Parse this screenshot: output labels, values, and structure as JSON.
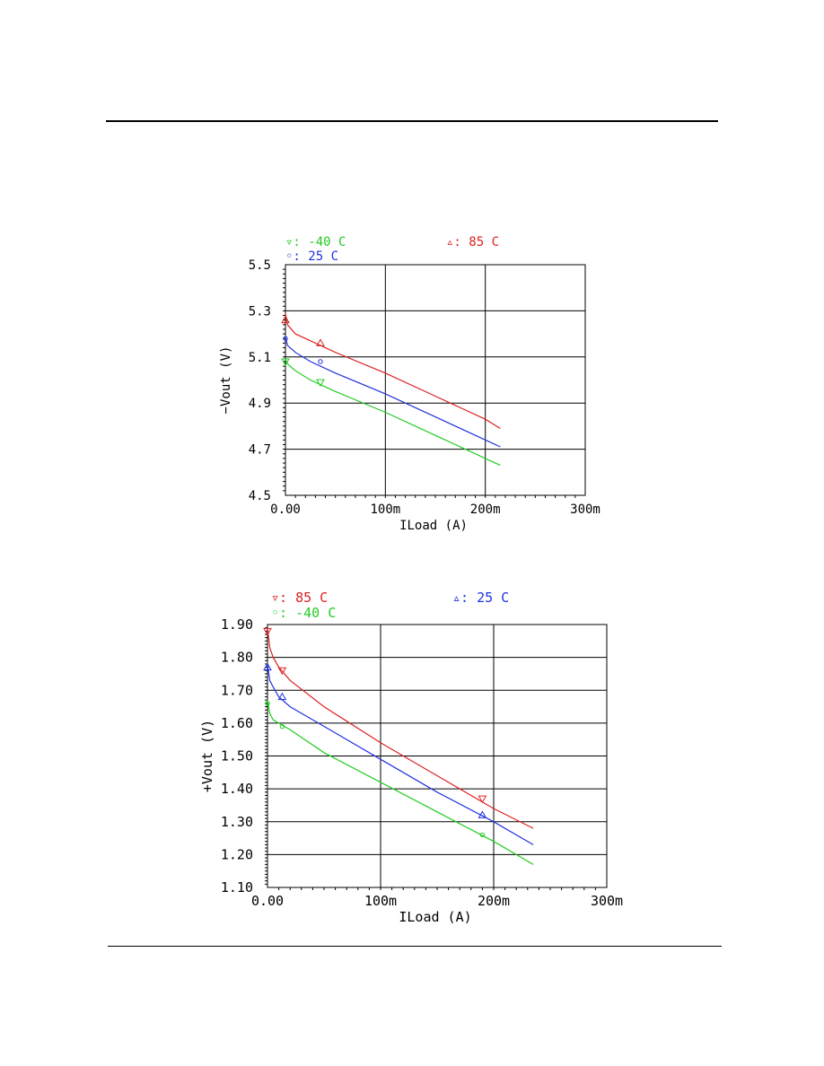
{
  "chart_data": [
    {
      "type": "line",
      "xlabel": "ILoad (A)",
      "ylabel": "−Vout (V)",
      "xlim": [
        0,
        0.3
      ],
      "ylim": [
        4.5,
        5.5
      ],
      "xticks": [
        0,
        0.1,
        0.2,
        0.3
      ],
      "xtick_labels": [
        "0.00",
        "100m",
        "200m",
        "300m"
      ],
      "yticks": [
        4.5,
        4.7,
        4.9,
        5.1,
        5.3,
        5.5
      ],
      "ytick_labels": [
        "4.5",
        "4.7",
        "4.9",
        "5.1",
        "5.3",
        "5.5"
      ],
      "grid": true,
      "legend_position": "top",
      "series": [
        {
          "name": "-40 C",
          "legend": "▿: -40 C",
          "color": "#22cc22",
          "marker": "down",
          "x": [
            0,
            0.002,
            0.01,
            0.025,
            0.05,
            0.1,
            0.15,
            0.2,
            0.215
          ],
          "y": [
            5.09,
            5.07,
            5.04,
            5.0,
            4.95,
            4.86,
            4.76,
            4.66,
            4.63
          ],
          "marker_x": [
            0,
            0.035
          ],
          "marker_y": [
            5.08,
            4.99
          ]
        },
        {
          "name": "25 C",
          "legend": "◦: 25 C",
          "color": "#2233dd",
          "marker": "circle",
          "x": [
            0,
            0.002,
            0.01,
            0.025,
            0.05,
            0.1,
            0.15,
            0.2,
            0.215
          ],
          "y": [
            5.19,
            5.15,
            5.12,
            5.08,
            5.03,
            4.94,
            4.84,
            4.74,
            4.71
          ],
          "marker_x": [
            0,
            0.035
          ],
          "marker_y": [
            5.18,
            5.08
          ]
        },
        {
          "name": "85 C",
          "legend": "▵: 85 C",
          "color": "#dd2222",
          "marker": "up",
          "x": [
            0,
            0.002,
            0.01,
            0.025,
            0.05,
            0.1,
            0.15,
            0.2,
            0.215
          ],
          "y": [
            5.29,
            5.24,
            5.2,
            5.17,
            5.12,
            5.03,
            4.93,
            4.83,
            4.79
          ],
          "marker_x": [
            0,
            0.035
          ],
          "marker_y": [
            5.26,
            5.16
          ]
        }
      ]
    },
    {
      "type": "line",
      "xlabel": "ILoad (A)",
      "ylabel": "+Vout (V)",
      "xlim": [
        0,
        0.3
      ],
      "ylim": [
        1.1,
        1.9
      ],
      "xticks": [
        0,
        0.1,
        0.2,
        0.3
      ],
      "xtick_labels": [
        "0.00",
        "100m",
        "200m",
        "300m"
      ],
      "yticks": [
        1.1,
        1.2,
        1.3,
        1.4,
        1.5,
        1.6,
        1.7,
        1.8,
        1.9
      ],
      "ytick_labels": [
        "1.10",
        "1.20",
        "1.30",
        "1.40",
        "1.50",
        "1.60",
        "1.70",
        "1.80",
        "1.90"
      ],
      "grid": true,
      "legend_position": "top",
      "series": [
        {
          "name": "85 C",
          "legend": "▿: 85 C",
          "color": "#dd2222",
          "marker": "down",
          "x": [
            0,
            0.002,
            0.005,
            0.01,
            0.02,
            0.05,
            0.1,
            0.15,
            0.2,
            0.235
          ],
          "y": [
            1.89,
            1.83,
            1.8,
            1.77,
            1.73,
            1.65,
            1.54,
            1.44,
            1.34,
            1.28
          ],
          "marker_x": [
            0,
            0.013,
            0.19
          ],
          "marker_y": [
            1.88,
            1.76,
            1.37
          ]
        },
        {
          "name": "25 C",
          "legend": "▵: 25 C",
          "color": "#2233dd",
          "marker": "up",
          "x": [
            0,
            0.002,
            0.005,
            0.01,
            0.02,
            0.05,
            0.1,
            0.15,
            0.2,
            0.235
          ],
          "y": [
            1.78,
            1.73,
            1.71,
            1.68,
            1.65,
            1.59,
            1.49,
            1.39,
            1.3,
            1.23
          ],
          "marker_x": [
            0,
            0.013,
            0.19
          ],
          "marker_y": [
            1.77,
            1.68,
            1.32
          ]
        },
        {
          "name": "-40 C",
          "legend": "◦: -40 C",
          "color": "#22cc22",
          "marker": "circle",
          "x": [
            0,
            0.002,
            0.005,
            0.01,
            0.02,
            0.05,
            0.1,
            0.15,
            0.2,
            0.235
          ],
          "y": [
            1.67,
            1.63,
            1.61,
            1.6,
            1.58,
            1.51,
            1.42,
            1.33,
            1.24,
            1.17
          ],
          "marker_x": [
            0,
            0.013,
            0.19
          ],
          "marker_y": [
            1.66,
            1.59,
            1.26
          ]
        }
      ]
    }
  ]
}
